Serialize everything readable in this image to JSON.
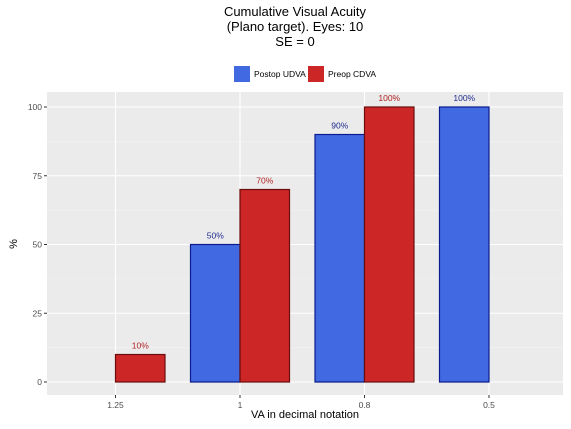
{
  "chart_data": {
    "type": "bar",
    "title_lines": [
      "Cumulative Visual Acuity",
      "(Plano target). Eyes: 10",
      "SE = 0"
    ],
    "xlabel": "VA in decimal notation",
    "ylabel": "%",
    "categories": [
      "1.25",
      "1",
      "0.8",
      "0.5"
    ],
    "ylim": [
      0,
      100
    ],
    "yticks": [
      0,
      25,
      50,
      75,
      100
    ],
    "grid": true,
    "legend_position": "top",
    "series": [
      {
        "name": "Postop UDVA",
        "color": "#4169e1",
        "edge_color": "#0b1a8c",
        "label_color": "#1f2b8f",
        "values": [
          null,
          50,
          90,
          100
        ],
        "labels": [
          "",
          "50%",
          "90%",
          "100%"
        ]
      },
      {
        "name": "Preop CDVA",
        "color": "#cd2626",
        "edge_color": "#6b0d0d",
        "label_color": "#b22222",
        "values": [
          10,
          70,
          100,
          null
        ],
        "labels": [
          "10%",
          "70%",
          "100%",
          ""
        ]
      }
    ]
  }
}
